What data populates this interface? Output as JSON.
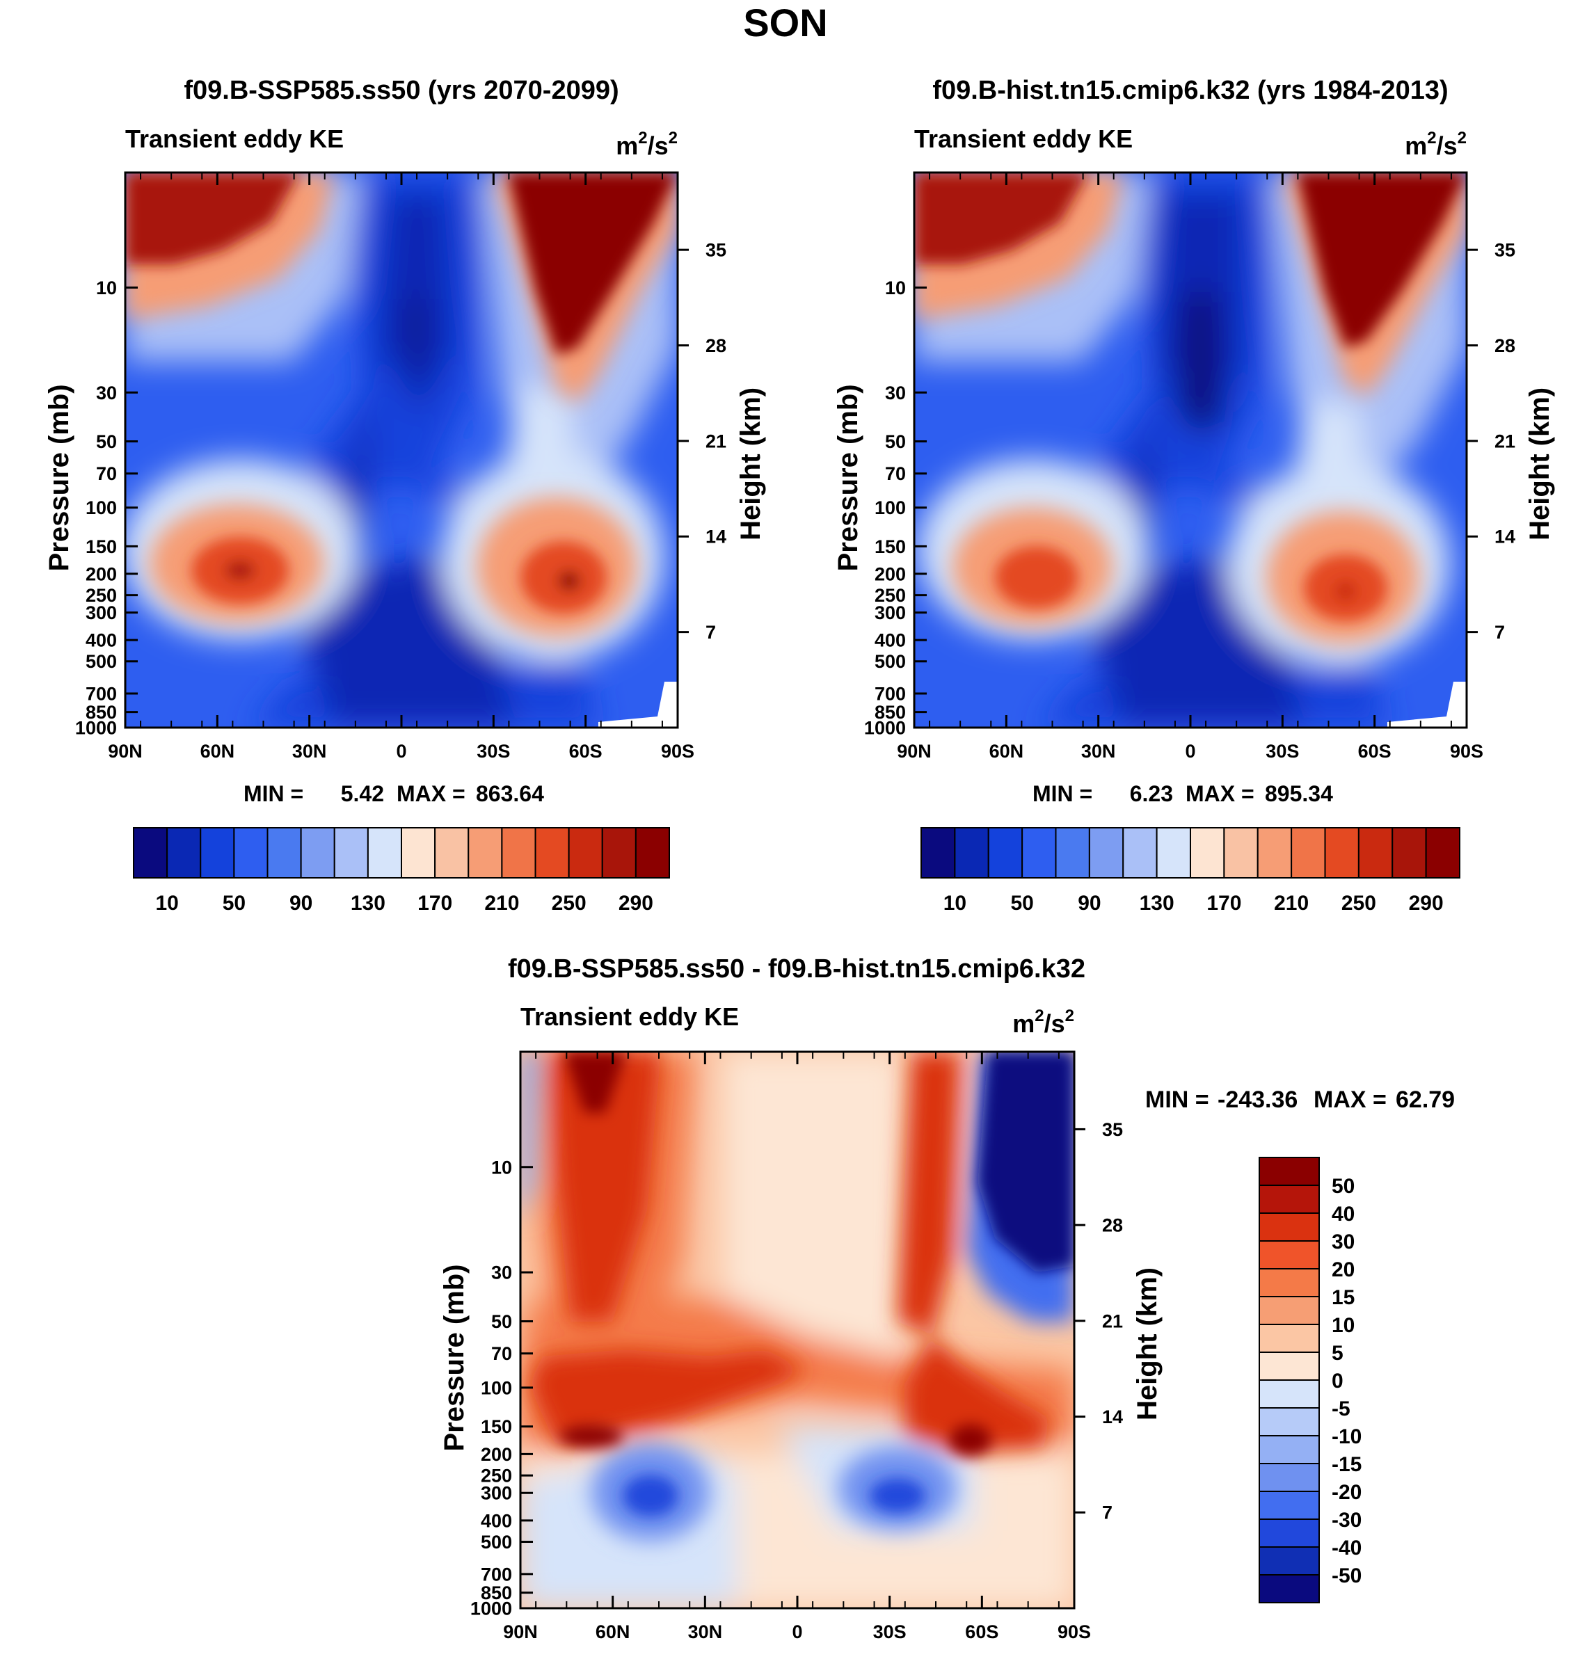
{
  "chart_data": {
    "type": "contour",
    "title": "SON",
    "panels": [
      {
        "id": "ssp585",
        "title": "f09.B-SSP585.ss50 (yrs 2070-2099)",
        "left_label": "Transient eddy KE",
        "units_base": "m",
        "units_exp1": "2",
        "units_mid": "/s",
        "units_exp2": "2",
        "ylabel": "Pressure (mb)",
        "ylabel_right": "Height (km)",
        "pressure_ticks": [
          "10",
          "30",
          "50",
          "70",
          "100",
          "150",
          "200",
          "250",
          "300",
          "400",
          "500",
          "700",
          "850",
          "1000"
        ],
        "height_ticks": [
          "35",
          "28",
          "21",
          "14",
          "7"
        ],
        "lat_ticks": [
          "90N",
          "60N",
          "30N",
          "0",
          "30S",
          "60S",
          "90S"
        ],
        "min_label": "MIN =",
        "min_value": "5.42",
        "max_label": "MAX =",
        "max_value": "863.64",
        "colorbar_labels": [
          "10",
          "50",
          "90",
          "130",
          "170",
          "210",
          "250",
          "290"
        ],
        "features": [
          {
            "lat": -50,
            "p": 250,
            "value": 500
          },
          {
            "lat": 47,
            "p": 250,
            "value": 420
          },
          {
            "lat": -65,
            "p": 10,
            "value": 860
          },
          {
            "lat": 80,
            "p": 10,
            "value": 700
          },
          {
            "lat": 2,
            "p": 30,
            "value": 6
          }
        ]
      },
      {
        "id": "hist",
        "title": "f09.B-hist.tn15.cmip6.k32 (yrs 1984-2013)",
        "left_label": "Transient eddy KE",
        "units_base": "m",
        "units_exp1": "2",
        "units_mid": "/s",
        "units_exp2": "2",
        "ylabel": "Pressure (mb)",
        "ylabel_right": "Height (km)",
        "pressure_ticks": [
          "10",
          "30",
          "50",
          "70",
          "100",
          "150",
          "200",
          "250",
          "300",
          "400",
          "500",
          "700",
          "850",
          "1000"
        ],
        "height_ticks": [
          "35",
          "28",
          "21",
          "14",
          "7"
        ],
        "lat_ticks": [
          "90N",
          "60N",
          "30N",
          "0",
          "30S",
          "60S",
          "90S"
        ],
        "min_label": "MIN =",
        "min_value": "6.23",
        "max_label": "MAX =",
        "max_value": "895.34",
        "colorbar_labels": [
          "10",
          "50",
          "90",
          "130",
          "170",
          "210",
          "250",
          "290"
        ],
        "features": [
          {
            "lat": -50,
            "p": 250,
            "value": 420
          },
          {
            "lat": 50,
            "p": 250,
            "value": 380
          },
          {
            "lat": -65,
            "p": 10,
            "value": 890
          },
          {
            "lat": 80,
            "p": 10,
            "value": 700
          },
          {
            "lat": 0,
            "p": 40,
            "value": 7
          }
        ]
      },
      {
        "id": "diff",
        "title": "f09.B-SSP585.ss50 - f09.B-hist.tn15.cmip6.k32",
        "left_label": "Transient eddy KE",
        "units_base": "m",
        "units_exp1": "2",
        "units_mid": "/s",
        "units_exp2": "2",
        "ylabel": "Pressure (mb)",
        "ylabel_right": "Height (km)",
        "pressure_ticks": [
          "10",
          "30",
          "50",
          "70",
          "100",
          "150",
          "200",
          "250",
          "300",
          "400",
          "500",
          "700",
          "850",
          "1000"
        ],
        "height_ticks": [
          "35",
          "28",
          "21",
          "14",
          "7"
        ],
        "lat_ticks": [
          "90N",
          "60N",
          "30N",
          "0",
          "30S",
          "60S",
          "90S"
        ],
        "min_label": "MIN =",
        "min_value": "-243.36",
        "max_label": "MAX =",
        "max_value": "62.79",
        "colorbar_labels": [
          "50",
          "40",
          "30",
          "20",
          "15",
          "10",
          "5",
          "0",
          "-5",
          "-10",
          "-15",
          "-20",
          "-30",
          "-40",
          "-50"
        ],
        "features": [
          {
            "lat": -75,
            "p": 10,
            "value": -243
          },
          {
            "lat": -58,
            "p": 200,
            "value": 60
          },
          {
            "lat": 62,
            "p": 200,
            "value": 55
          },
          {
            "lat": 48,
            "p": 350,
            "value": -30
          },
          {
            "lat": -40,
            "p": 350,
            "value": -30
          }
        ]
      }
    ],
    "palette_abs": [
      "#0a0a7f",
      "#0a28b4",
      "#1442dc",
      "#2e5ef0",
      "#4a7af0",
      "#7d9df2",
      "#aac0f7",
      "#d6e4fa",
      "#fde4d2",
      "#f9c2a4",
      "#f69d75",
      "#f07448",
      "#e44a22",
      "#ca2a10",
      "#a8150a",
      "#8b0000"
    ],
    "palette_diff": [
      "#8b0000",
      "#b5150a",
      "#da3210",
      "#f0542a",
      "#f47a48",
      "#f69e74",
      "#fbc6a4",
      "#fde6d4",
      "#d6e4fa",
      "#b6cbf8",
      "#94b0f4",
      "#6f91f0",
      "#426ef0",
      "#2148dc",
      "#102fb4",
      "#0a0a7f"
    ]
  }
}
